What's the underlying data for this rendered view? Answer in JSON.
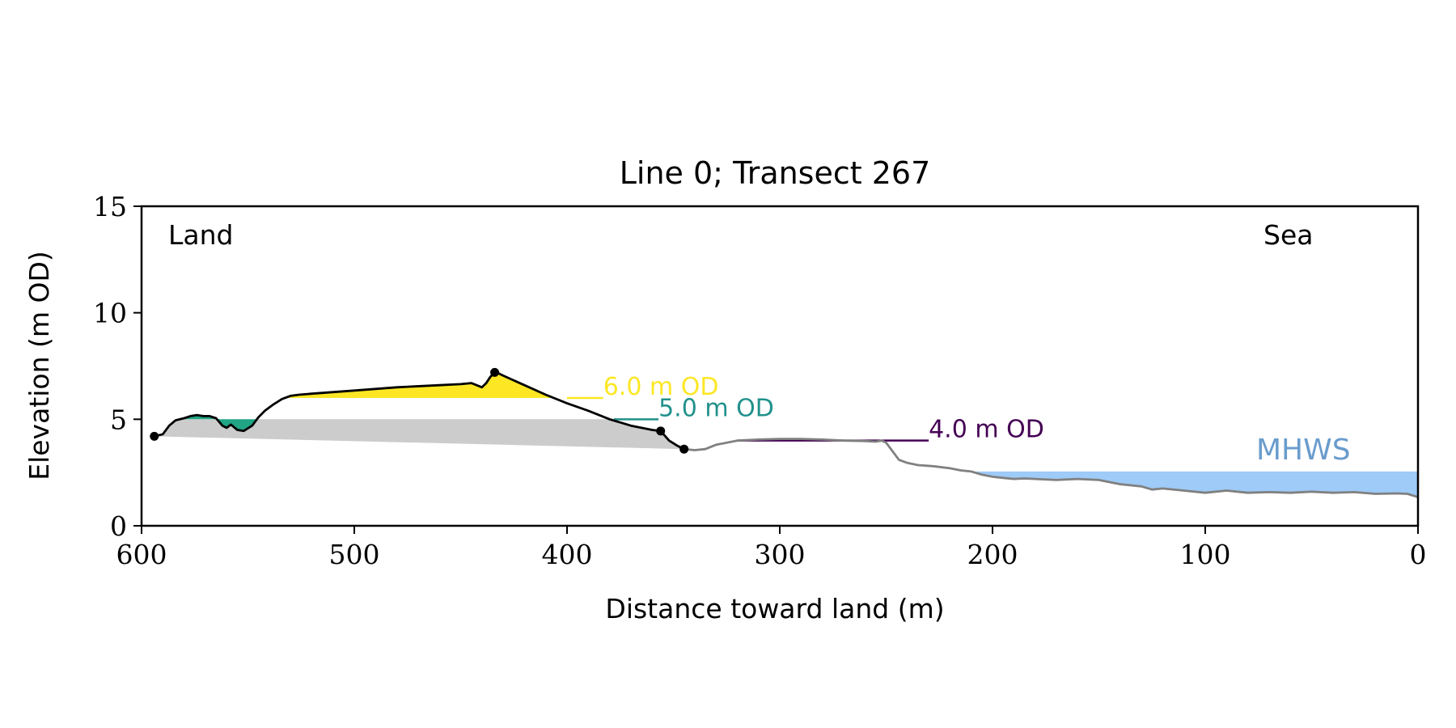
{
  "chart_data": {
    "type": "area",
    "title": "Line 0; Transect 267",
    "xlabel": "Distance toward land (m)",
    "ylabel": "Elevation (m OD)",
    "xlim": [
      600,
      0
    ],
    "ylim": [
      0,
      15
    ],
    "x_ticks": [
      600,
      500,
      400,
      300,
      200,
      100,
      0
    ],
    "y_ticks": [
      0,
      5,
      10,
      15
    ],
    "grid": false,
    "annotations": {
      "land": "Land",
      "sea": "Sea",
      "mhws_label": "MHWS"
    },
    "mhws": {
      "elevation": 2.55,
      "x_start": 208,
      "x_end": 0
    },
    "colors": {
      "fill_6": "#fde725",
      "fill_5": "#21a585",
      "base_fill": "#cccccc",
      "mhws_fill": "#9ecbf7",
      "mhws_text": "#6a9ccd",
      "profile_dune": "#000000",
      "profile_other": "#808080",
      "level_6": "#fde725",
      "level_5": "#21918c",
      "level_4": "#440154"
    },
    "levels": [
      {
        "label": "6.0 m OD",
        "elevation": 6.0,
        "color": "#fde725",
        "x_start": 400,
        "x_end": 383
      },
      {
        "label": "5.0 m OD",
        "elevation": 5.0,
        "color": "#21918c",
        "x_start": 378,
        "x_end": 357
      },
      {
        "label": "4.0 m OD",
        "elevation": 4.0,
        "color": "#440154",
        "x_start": 320,
        "x_end": 230
      }
    ],
    "series": [
      {
        "segment": "dune_profile",
        "x": [
          594,
          590,
          587,
          584,
          580,
          577,
          574,
          571,
          568,
          565,
          562,
          560,
          558,
          555,
          552,
          548,
          545,
          542,
          538,
          534,
          530,
          526,
          520,
          500,
          480,
          460,
          450,
          445,
          440,
          438,
          436,
          434,
          432,
          430,
          420,
          410,
          400,
          390,
          380,
          370,
          360,
          356,
          352,
          348,
          345
        ],
        "y": [
          4.2,
          4.3,
          4.7,
          4.95,
          5.05,
          5.15,
          5.2,
          5.15,
          5.15,
          5.05,
          4.7,
          4.6,
          4.75,
          4.5,
          4.45,
          4.7,
          5.1,
          5.4,
          5.7,
          5.95,
          6.1,
          6.15,
          6.2,
          6.35,
          6.5,
          6.6,
          6.65,
          6.7,
          6.5,
          6.7,
          7.0,
          7.2,
          7.15,
          7.05,
          6.6,
          6.15,
          5.75,
          5.4,
          5.0,
          4.7,
          4.5,
          4.45,
          4.0,
          3.75,
          3.6
        ]
      },
      {
        "segment": "foreshore_profile",
        "x": [
          345,
          340,
          335,
          330,
          320,
          310,
          300,
          290,
          280,
          270,
          260,
          255,
          252,
          250,
          247,
          244,
          240,
          235,
          228,
          220,
          215,
          210,
          205,
          200,
          195,
          190,
          185,
          180,
          170,
          160,
          150,
          140,
          130,
          125,
          120,
          110,
          100,
          90,
          80,
          70,
          60,
          50,
          40,
          30,
          20,
          10,
          5,
          0
        ],
        "y": [
          3.6,
          3.55,
          3.6,
          3.8,
          4.0,
          4.05,
          4.08,
          4.08,
          4.05,
          4.0,
          3.98,
          3.95,
          4.0,
          3.9,
          3.5,
          3.1,
          2.95,
          2.85,
          2.8,
          2.7,
          2.6,
          2.55,
          2.4,
          2.3,
          2.25,
          2.2,
          2.22,
          2.2,
          2.15,
          2.2,
          2.15,
          1.95,
          1.85,
          1.7,
          1.75,
          1.65,
          1.55,
          1.65,
          1.55,
          1.58,
          1.55,
          1.6,
          1.55,
          1.58,
          1.5,
          1.52,
          1.5,
          1.35
        ]
      }
    ],
    "markers": [
      {
        "x": 594,
        "y": 4.2
      },
      {
        "x": 434,
        "y": 7.2
      },
      {
        "x": 356,
        "y": 4.45
      },
      {
        "x": 345,
        "y": 3.6
      }
    ]
  }
}
